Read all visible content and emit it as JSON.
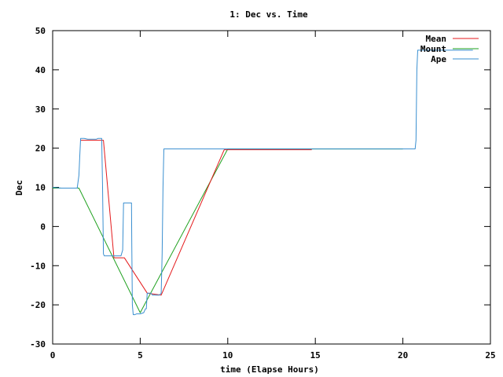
{
  "chart_data": {
    "type": "line",
    "title": "1: Dec vs. Time",
    "xlabel": "time (Elapse Hours)",
    "ylabel": "Dec",
    "xlim": [
      0,
      25
    ],
    "ylim": [
      -30,
      50
    ],
    "xticks": [
      0,
      5,
      10,
      15,
      20,
      25
    ],
    "yticks": [
      -30,
      -20,
      -10,
      0,
      10,
      20,
      30,
      40,
      50
    ],
    "grid": false,
    "legend_position": "top-right",
    "series": [
      {
        "name": "Mean",
        "color": "#e41a1c",
        "x": [
          1.6,
          2.5,
          2.9,
          3.5,
          4.1,
          5.4,
          6.2,
          9.8,
          14.8
        ],
        "y": [
          22,
          22,
          22,
          -8,
          -8,
          -17,
          -17.5,
          19.6,
          19.6
        ]
      },
      {
        "name": "Mount",
        "color": "#1ea01e",
        "x": [
          0,
          1.5,
          5,
          10,
          20
        ],
        "y": [
          9.8,
          9.8,
          -22,
          19.8,
          19.8
        ]
      },
      {
        "name": "Ape",
        "color": "#3a8fd0",
        "x": [
          0,
          0.5,
          1.0,
          1.4,
          1.5,
          1.55,
          1.6,
          1.8,
          2.0,
          2.5,
          2.6,
          2.8,
          2.85,
          2.9,
          2.95,
          3.0,
          3.5,
          3.9,
          4.0,
          4.05,
          4.1,
          4.5,
          4.52,
          4.55,
          4.6,
          4.7,
          4.8,
          5.0,
          5.2,
          5.3,
          5.35,
          5.4,
          5.6,
          5.7,
          6.1,
          6.2,
          6.25,
          6.3,
          6.35,
          10,
          15,
          20,
          20.7,
          20.75,
          20.8,
          20.85,
          21,
          22,
          23,
          24
        ],
        "y": [
          10,
          9.8,
          9.8,
          9.8,
          13,
          18,
          22.5,
          22.5,
          22.3,
          22.3,
          22.5,
          22.5,
          10,
          -7,
          -7.5,
          -7.5,
          -7.5,
          -7.5,
          -6,
          6,
          6,
          6,
          -5,
          -20,
          -22.5,
          -22.5,
          -22.3,
          -22.3,
          -22,
          -21,
          -21,
          -17,
          -17,
          -17.5,
          -17.5,
          -17,
          -7,
          10,
          19.8,
          19.8,
          19.8,
          19.8,
          19.8,
          22,
          40,
          45,
          45,
          45,
          45,
          45
        ]
      }
    ]
  }
}
